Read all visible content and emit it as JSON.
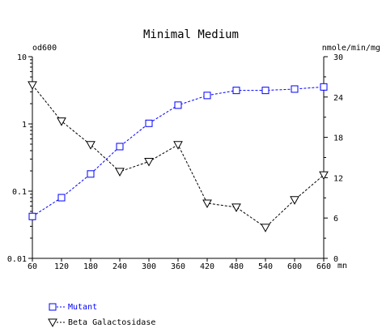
{
  "chart_data": {
    "type": "line",
    "title": "Minimal Medium",
    "x": [
      60,
      120,
      180,
      240,
      300,
      360,
      420,
      480,
      540,
      600,
      660
    ],
    "x_tick_labels": [
      "60",
      "120",
      "180",
      "240",
      "300",
      "360",
      "420",
      "480",
      "540",
      "600",
      "660"
    ],
    "x_unit": "mn",
    "xlim": [
      60,
      660
    ],
    "y_left": {
      "label": "od600",
      "scale": "log",
      "lim": [
        0.01,
        10
      ],
      "tick_values": [
        0.01,
        0.1,
        1,
        10
      ],
      "tick_labels": [
        "0.01",
        "0.1",
        "1",
        "10"
      ]
    },
    "y_right": {
      "label": "nmole/min/mg",
      "scale": "linear",
      "lim": [
        0,
        30
      ],
      "tick_values": [
        0,
        6,
        12,
        18,
        24,
        30
      ],
      "tick_labels": [
        "0",
        "6",
        "12",
        "18",
        "24",
        "30"
      ]
    },
    "grid": false,
    "legend_position": "bottom-left",
    "series": [
      {
        "name": "Mutant",
        "axis": "left",
        "marker": "square",
        "line": "dashed",
        "color": "#0000ff",
        "values": [
          0.042,
          0.08,
          0.18,
          0.46,
          1.02,
          1.9,
          2.65,
          3.15,
          3.15,
          3.3,
          3.55
        ]
      },
      {
        "name": "Beta Galactosidase",
        "axis": "right",
        "marker": "triangle-down",
        "line": "dashed",
        "color": "#000000",
        "values": [
          25.8,
          20.4,
          16.9,
          12.9,
          14.4,
          16.9,
          8.2,
          7.6,
          4.6,
          8.7,
          12.4
        ]
      }
    ]
  }
}
